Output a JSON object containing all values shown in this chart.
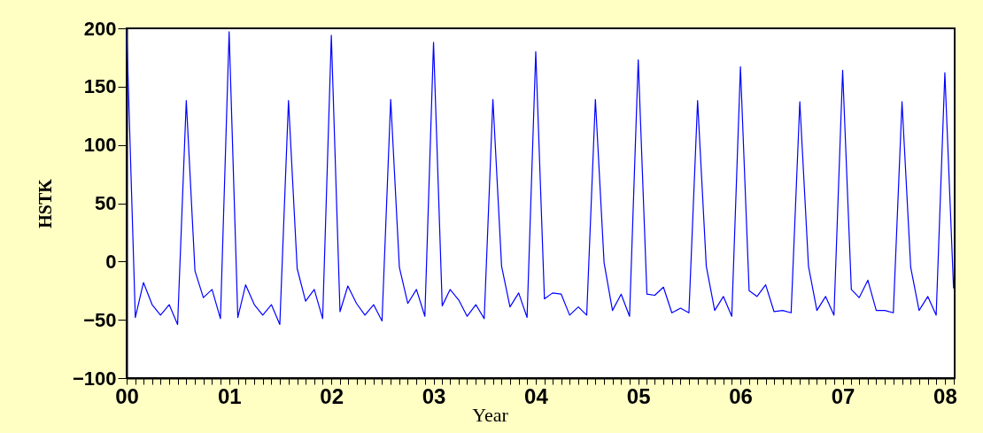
{
  "chart_data": {
    "type": "line",
    "xlabel": "Year",
    "ylabel": "HSTK",
    "grid": false,
    "legend": false,
    "x": [
      "2000-01",
      "2000-02",
      "2000-03",
      "2000-04",
      "2000-05",
      "2000-06",
      "2000-07",
      "2000-08",
      "2000-09",
      "2000-10",
      "2000-11",
      "2000-12",
      "2001-01",
      "2001-02",
      "2001-03",
      "2001-04",
      "2001-05",
      "2001-06",
      "2001-07",
      "2001-08",
      "2001-09",
      "2001-10",
      "2001-11",
      "2001-12",
      "2002-01",
      "2002-02",
      "2002-03",
      "2002-04",
      "2002-05",
      "2002-06",
      "2002-07",
      "2002-08",
      "2002-09",
      "2002-10",
      "2002-11",
      "2002-12",
      "2003-01",
      "2003-02",
      "2003-03",
      "2003-04",
      "2003-05",
      "2003-06",
      "2003-07",
      "2003-08",
      "2003-09",
      "2003-10",
      "2003-11",
      "2003-12",
      "2004-01",
      "2004-02",
      "2004-03",
      "2004-04",
      "2004-05",
      "2004-06",
      "2004-07",
      "2004-08",
      "2004-09",
      "2004-10",
      "2004-11",
      "2004-12",
      "2005-01",
      "2005-02",
      "2005-03",
      "2005-04",
      "2005-05",
      "2005-06",
      "2005-07",
      "2005-08",
      "2005-09",
      "2005-10",
      "2005-11",
      "2005-12",
      "2006-01",
      "2006-02",
      "2006-03",
      "2006-04",
      "2006-05",
      "2006-06",
      "2006-07",
      "2006-08",
      "2006-09",
      "2006-10",
      "2006-11",
      "2006-12",
      "2007-01",
      "2007-02",
      "2007-03",
      "2007-04",
      "2007-05",
      "2007-06",
      "2007-07",
      "2007-08",
      "2007-09",
      "2007-10",
      "2007-11",
      "2007-12",
      "2008-01",
      "2008-02"
    ],
    "series": [
      {
        "color": "#0000ff",
        "values": [
          199,
          -48,
          -18,
          -37,
          -46,
          -37,
          -54,
          138,
          -8,
          -31,
          -24,
          -49,
          197,
          -48,
          -20,
          -37,
          -46,
          -37,
          -54,
          138,
          -6,
          -34,
          -24,
          -49,
          194,
          -43,
          -21,
          -36,
          -46,
          -37,
          -51,
          139,
          -5,
          -36,
          -24,
          -47,
          188,
          -38,
          -24,
          -33,
          -47,
          -37,
          -49,
          139,
          -4,
          -39,
          -27,
          -48,
          180,
          -32,
          -27,
          -28,
          -46,
          -39,
          -46,
          139,
          -1,
          -42,
          -28,
          -47,
          173,
          -28,
          -29,
          -22,
          -44,
          -40,
          -44,
          138,
          -4,
          -42,
          -30,
          -47,
          167,
          -25,
          -30,
          -20,
          -43,
          -42,
          -44,
          137,
          -4,
          -42,
          -30,
          -46,
          164,
          -24,
          -31,
          -16,
          -42,
          -42,
          -44,
          137,
          -5,
          -42,
          -30,
          -46,
          162,
          -23
        ]
      }
    ],
    "xlim": [
      "2000-01-01",
      "2008-02-05"
    ],
    "xticks": [
      {
        "value": "2000-01",
        "label": "00"
      },
      {
        "value": "2001-01",
        "label": "01"
      },
      {
        "value": "2002-01",
        "label": "02"
      },
      {
        "value": "2003-01",
        "label": "03"
      },
      {
        "value": "2004-01",
        "label": "04"
      },
      {
        "value": "2005-01",
        "label": "05"
      },
      {
        "value": "2006-01",
        "label": "06"
      },
      {
        "value": "2007-01",
        "label": "07"
      },
      {
        "value": "2008-01",
        "label": "08"
      },
      {
        "value": "2000-02",
        "label": null
      },
      {
        "value": "2000-03",
        "label": null
      },
      {
        "value": "2000-04",
        "label": null
      },
      {
        "value": "2000-05",
        "label": null
      },
      {
        "value": "2000-06",
        "label": null
      },
      {
        "value": "2000-07",
        "label": null
      },
      {
        "value": "2000-08",
        "label": null
      },
      {
        "value": "2000-09",
        "label": null
      },
      {
        "value": "2000-10",
        "label": null
      },
      {
        "value": "2000-11",
        "label": null
      },
      {
        "value": "2000-12",
        "label": null
      },
      {
        "value": "2001-02",
        "label": null
      },
      {
        "value": "2001-03",
        "label": null
      },
      {
        "value": "2001-04",
        "label": null
      },
      {
        "value": "2001-05",
        "label": null
      },
      {
        "value": "2001-06",
        "label": null
      },
      {
        "value": "2001-07",
        "label": null
      },
      {
        "value": "2001-08",
        "label": null
      },
      {
        "value": "2001-09",
        "label": null
      },
      {
        "value": "2001-10",
        "label": null
      },
      {
        "value": "2001-11",
        "label": null
      },
      {
        "value": "2001-12",
        "label": null
      },
      {
        "value": "2002-02",
        "label": null
      },
      {
        "value": "2002-03",
        "label": null
      },
      {
        "value": "2002-04",
        "label": null
      },
      {
        "value": "2002-05",
        "label": null
      },
      {
        "value": "2002-06",
        "label": null
      },
      {
        "value": "2002-07",
        "label": null
      },
      {
        "value": "2002-08",
        "label": null
      },
      {
        "value": "2002-09",
        "label": null
      },
      {
        "value": "2002-10",
        "label": null
      },
      {
        "value": "2002-11",
        "label": null
      },
      {
        "value": "2002-12",
        "label": null
      },
      {
        "value": "2003-02",
        "label": null
      },
      {
        "value": "2003-03",
        "label": null
      },
      {
        "value": "2003-04",
        "label": null
      },
      {
        "value": "2003-05",
        "label": null
      },
      {
        "value": "2003-06",
        "label": null
      },
      {
        "value": "2003-07",
        "label": null
      },
      {
        "value": "2003-08",
        "label": null
      },
      {
        "value": "2003-09",
        "label": null
      },
      {
        "value": "2003-10",
        "label": null
      },
      {
        "value": "2003-11",
        "label": null
      },
      {
        "value": "2003-12",
        "label": null
      },
      {
        "value": "2004-02",
        "label": null
      },
      {
        "value": "2004-03",
        "label": null
      },
      {
        "value": "2004-04",
        "label": null
      },
      {
        "value": "2004-05",
        "label": null
      },
      {
        "value": "2004-06",
        "label": null
      },
      {
        "value": "2004-07",
        "label": null
      },
      {
        "value": "2004-08",
        "label": null
      },
      {
        "value": "2004-09",
        "label": null
      },
      {
        "value": "2004-10",
        "label": null
      },
      {
        "value": "2004-11",
        "label": null
      },
      {
        "value": "2004-12",
        "label": null
      },
      {
        "value": "2005-02",
        "label": null
      },
      {
        "value": "2005-03",
        "label": null
      },
      {
        "value": "2005-04",
        "label": null
      },
      {
        "value": "2005-05",
        "label": null
      },
      {
        "value": "2005-06",
        "label": null
      },
      {
        "value": "2005-07",
        "label": null
      },
      {
        "value": "2005-08",
        "label": null
      },
      {
        "value": "2005-09",
        "label": null
      },
      {
        "value": "2005-10",
        "label": null
      },
      {
        "value": "2005-11",
        "label": null
      },
      {
        "value": "2005-12",
        "label": null
      },
      {
        "value": "2006-02",
        "label": null
      },
      {
        "value": "2006-03",
        "label": null
      },
      {
        "value": "2006-04",
        "label": null
      },
      {
        "value": "2006-05",
        "label": null
      },
      {
        "value": "2006-06",
        "label": null
      },
      {
        "value": "2006-07",
        "label": null
      },
      {
        "value": "2006-08",
        "label": null
      },
      {
        "value": "2006-09",
        "label": null
      },
      {
        "value": "2006-10",
        "label": null
      },
      {
        "value": "2006-11",
        "label": null
      },
      {
        "value": "2006-12",
        "label": null
      },
      {
        "value": "2007-02",
        "label": null
      },
      {
        "value": "2007-03",
        "label": null
      },
      {
        "value": "2007-04",
        "label": null
      },
      {
        "value": "2007-05",
        "label": null
      },
      {
        "value": "2007-06",
        "label": null
      },
      {
        "value": "2007-07",
        "label": null
      },
      {
        "value": "2007-08",
        "label": null
      },
      {
        "value": "2007-09",
        "label": null
      },
      {
        "value": "2007-10",
        "label": null
      },
      {
        "value": "2007-11",
        "label": null
      },
      {
        "value": "2007-12",
        "label": null
      },
      {
        "value": "2008-02",
        "label": null
      }
    ],
    "ylim": [
      -100,
      200
    ],
    "yticks": [
      -100,
      -50,
      0,
      50,
      100,
      150,
      200
    ]
  }
}
